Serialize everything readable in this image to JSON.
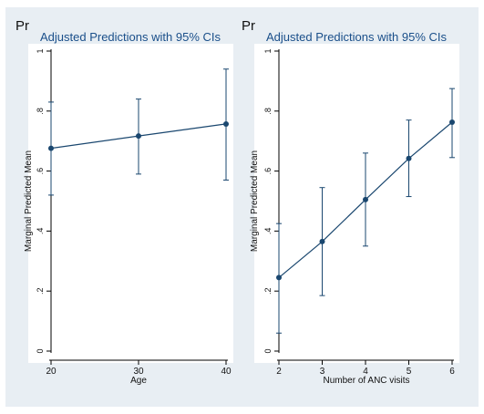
{
  "colors": {
    "background": "#e8eef3",
    "plot_area": "#ffffff",
    "series": "#1a476f",
    "title": "#1a4f8a",
    "axis": "#000000"
  },
  "chart_data": [
    {
      "type": "line",
      "panel_label": "Pr",
      "title": "Adjusted Predictions with 95% CIs",
      "xlabel": "Age",
      "ylabel": "Marginal Predicted Mean",
      "x": [
        20,
        30,
        40
      ],
      "y": [
        0.676,
        0.717,
        0.757
      ],
      "ci_lower": [
        0.52,
        0.59,
        0.57
      ],
      "ci_upper": [
        0.83,
        0.84,
        0.94
      ],
      "xlim": [
        20,
        40
      ],
      "xticks": [
        "20",
        "30",
        "40"
      ],
      "ylim": [
        0,
        1
      ],
      "yticks": [
        "0",
        ".2",
        ".4",
        ".6",
        ".8",
        "1"
      ],
      "grid": false
    },
    {
      "type": "line",
      "panel_label": "Pr",
      "title": "Adjusted Predictions with 95% CIs",
      "xlabel": "Number of ANC visits",
      "ylabel": "Marginal Predicted Mean",
      "x": [
        2,
        3,
        4,
        5,
        6
      ],
      "y": [
        0.245,
        0.365,
        0.505,
        0.642,
        0.763
      ],
      "ci_lower": [
        0.06,
        0.185,
        0.35,
        0.515,
        0.645
      ],
      "ci_upper": [
        0.425,
        0.545,
        0.66,
        0.77,
        0.875
      ],
      "xlim": [
        2,
        6
      ],
      "xticks": [
        "2",
        "3",
        "4",
        "5",
        "6"
      ],
      "ylim": [
        0,
        1
      ],
      "yticks": [
        "0",
        ".2",
        ".4",
        ".6",
        ".8",
        "1"
      ],
      "grid": false
    }
  ]
}
